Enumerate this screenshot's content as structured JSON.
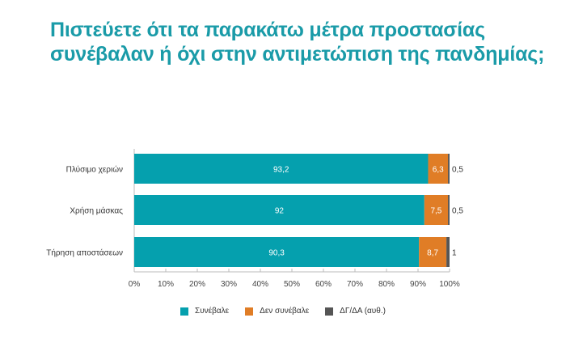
{
  "title_lines": [
    "Πιστεύετε ότι τα παρακάτω μέτρα προστασίας",
    "συνέβαλαν ή όχι στην αντιμετώπιση της πανδημίας;"
  ],
  "chart_data": {
    "type": "bar",
    "orientation": "horizontal",
    "stacked": true,
    "title": "Πιστεύετε ότι τα παρακάτω μέτρα προστασίας συνέβαλαν ή όχι στην αντιμετώπιση της πανδημίας;",
    "categories": [
      "Πλύσιμο χεριών",
      "Χρήση μάσκας",
      "Τήρηση αποστάσεων"
    ],
    "series": [
      {
        "name": "Συνέβαλε",
        "color": "#05a0ae",
        "values": [
          93.2,
          92,
          90.3
        ],
        "labels": [
          "93,2",
          "92",
          "90,3"
        ]
      },
      {
        "name": "Δεν συνέβαλε",
        "color": "#e07d26",
        "values": [
          6.3,
          7.5,
          8.7
        ],
        "labels": [
          "6,3",
          "7,5",
          "8,7"
        ]
      },
      {
        "name": "ΔΓ/ΔΑ (αυθ.)",
        "color": "#555555",
        "values": [
          0.5,
          0.5,
          1
        ],
        "labels": [
          "0,5",
          "0,5",
          "1"
        ]
      }
    ],
    "xlim": [
      0,
      100
    ],
    "xticks": [
      "0%",
      "10%",
      "20%",
      "30%",
      "40%",
      "50%",
      "60%",
      "70%",
      "80%",
      "90%",
      "100%"
    ],
    "xlabel": "",
    "ylabel": "",
    "grid": false,
    "legend": "bottom"
  }
}
